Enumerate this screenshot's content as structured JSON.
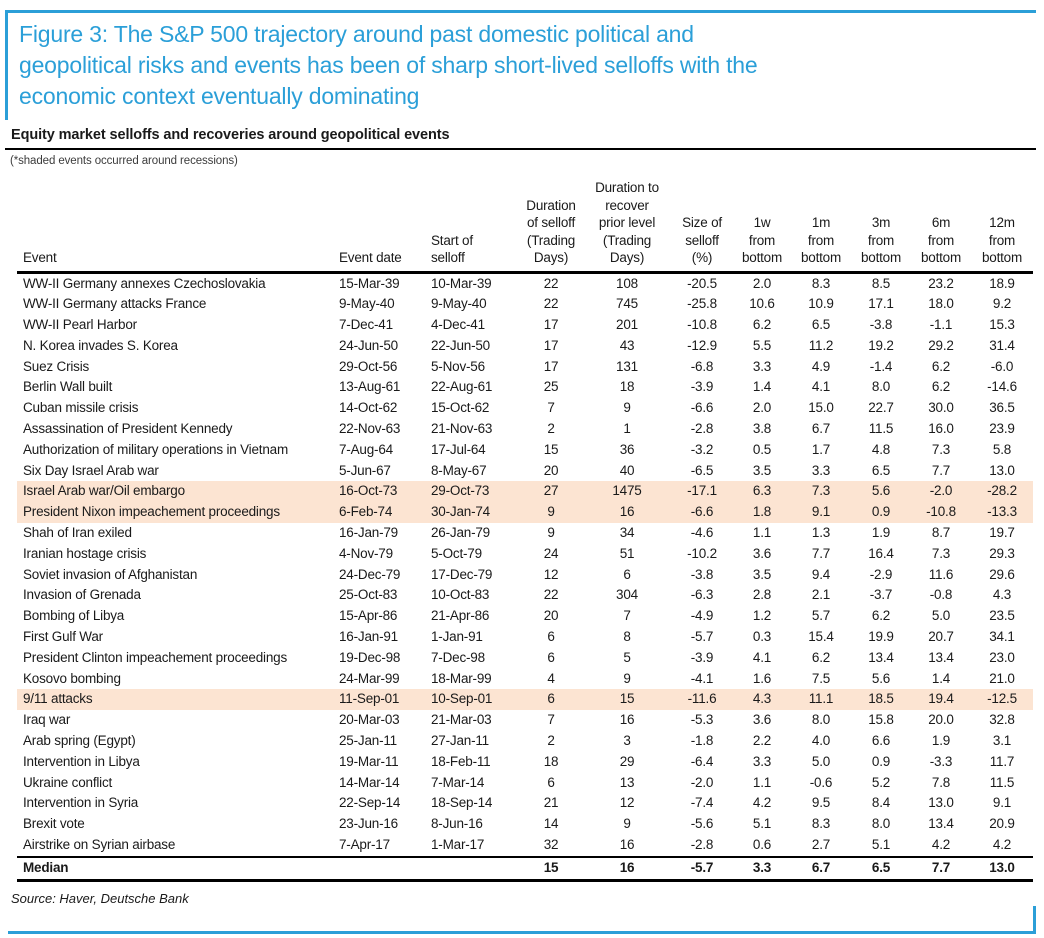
{
  "figure": {
    "title": "Figure 3: The S&P 500 trajectory around past domestic political and\ngeopolitical risks and events has been of sharp short-lived selloffs with the\neconomic context eventually dominating",
    "subtitle": "Equity market selloffs and recoveries around geopolitical events",
    "note": "(*shaded events occurred around recessions)",
    "source": "Source: Haver, Deutsche Bank"
  },
  "colors": {
    "accent_blue": "#2b9fd8",
    "recession_shade": "#fce4d2",
    "rule_black": "#000000"
  },
  "table": {
    "columns": [
      "Event",
      "Event date",
      "Start of\nselloff",
      "Duration\nof selloff\n(Trading\nDays)",
      "Duration to\nrecover\nprior level\n(Trading\nDays)",
      "Size of\nselloff\n(%)",
      "1w\nfrom\nbottom",
      "1m\nfrom\nbottom",
      "3m\nfrom\nbottom",
      "6m\nfrom\nbottom",
      "12m\nfrom\nbottom"
    ],
    "recession_shaded_row_indexes": [
      10,
      11,
      20
    ],
    "rows": [
      [
        "WW-II Germany annexes Czechoslovakia",
        "15-Mar-39",
        "10-Mar-39",
        "22",
        "108",
        "-20.5",
        "2.0",
        "8.3",
        "8.5",
        "23.2",
        "18.9"
      ],
      [
        "WW-II Germany attacks France",
        "9-May-40",
        "9-May-40",
        "22",
        "745",
        "-25.8",
        "10.6",
        "10.9",
        "17.1",
        "18.0",
        "9.2"
      ],
      [
        "WW-II Pearl Harbor",
        "7-Dec-41",
        "4-Dec-41",
        "17",
        "201",
        "-10.8",
        "6.2",
        "6.5",
        "-3.8",
        "-1.1",
        "15.3"
      ],
      [
        "N. Korea invades S. Korea",
        "24-Jun-50",
        "22-Jun-50",
        "17",
        "43",
        "-12.9",
        "5.5",
        "11.2",
        "19.2",
        "29.2",
        "31.4"
      ],
      [
        "Suez Crisis",
        "29-Oct-56",
        "5-Nov-56",
        "17",
        "131",
        "-6.8",
        "3.3",
        "4.9",
        "-1.4",
        "6.2",
        "-6.0"
      ],
      [
        "Berlin Wall built",
        "13-Aug-61",
        "22-Aug-61",
        "25",
        "18",
        "-3.9",
        "1.4",
        "4.1",
        "8.0",
        "6.2",
        "-14.6"
      ],
      [
        "Cuban missile crisis",
        "14-Oct-62",
        "15-Oct-62",
        "7",
        "9",
        "-6.6",
        "2.0",
        "15.0",
        "22.7",
        "30.0",
        "36.5"
      ],
      [
        "Assassination of President Kennedy",
        "22-Nov-63",
        "21-Nov-63",
        "2",
        "1",
        "-2.8",
        "3.8",
        "6.7",
        "11.5",
        "16.0",
        "23.9"
      ],
      [
        "Authorization of military operations in Vietnam",
        "7-Aug-64",
        "17-Jul-64",
        "15",
        "36",
        "-3.2",
        "0.5",
        "1.7",
        "4.8",
        "7.3",
        "5.8"
      ],
      [
        "Six Day Israel Arab war",
        "5-Jun-67",
        "8-May-67",
        "20",
        "40",
        "-6.5",
        "3.5",
        "3.3",
        "6.5",
        "7.7",
        "13.0"
      ],
      [
        "Israel Arab war/Oil embargo",
        "16-Oct-73",
        "29-Oct-73",
        "27",
        "1475",
        "-17.1",
        "6.3",
        "7.3",
        "5.6",
        "-2.0",
        "-28.2"
      ],
      [
        "President Nixon impeachement proceedings",
        "6-Feb-74",
        "30-Jan-74",
        "9",
        "16",
        "-6.6",
        "1.8",
        "9.1",
        "0.9",
        "-10.8",
        "-13.3"
      ],
      [
        "Shah of Iran exiled",
        "16-Jan-79",
        "26-Jan-79",
        "9",
        "34",
        "-4.6",
        "1.1",
        "1.3",
        "1.9",
        "8.7",
        "19.7"
      ],
      [
        "Iranian hostage crisis",
        "4-Nov-79",
        "5-Oct-79",
        "24",
        "51",
        "-10.2",
        "3.6",
        "7.7",
        "16.4",
        "7.3",
        "29.3"
      ],
      [
        "Soviet invasion of Afghanistan",
        "24-Dec-79",
        "17-Dec-79",
        "12",
        "6",
        "-3.8",
        "3.5",
        "9.4",
        "-2.9",
        "11.6",
        "29.6"
      ],
      [
        "Invasion of Grenada",
        "25-Oct-83",
        "10-Oct-83",
        "22",
        "304",
        "-6.3",
        "2.8",
        "2.1",
        "-3.7",
        "-0.8",
        "4.3"
      ],
      [
        "Bombing of Libya",
        "15-Apr-86",
        "21-Apr-86",
        "20",
        "7",
        "-4.9",
        "1.2",
        "5.7",
        "6.2",
        "5.0",
        "23.5"
      ],
      [
        "First Gulf War",
        "16-Jan-91",
        "1-Jan-91",
        "6",
        "8",
        "-5.7",
        "0.3",
        "15.4",
        "19.9",
        "20.7",
        "34.1"
      ],
      [
        "President Clinton impeachement proceedings",
        "19-Dec-98",
        "7-Dec-98",
        "6",
        "5",
        "-3.9",
        "4.1",
        "6.2",
        "13.4",
        "13.4",
        "23.0"
      ],
      [
        "Kosovo bombing",
        "24-Mar-99",
        "18-Mar-99",
        "4",
        "9",
        "-4.1",
        "1.6",
        "7.5",
        "5.6",
        "1.4",
        "21.0"
      ],
      [
        "9/11 attacks",
        "11-Sep-01",
        "10-Sep-01",
        "6",
        "15",
        "-11.6",
        "4.3",
        "11.1",
        "18.5",
        "19.4",
        "-12.5"
      ],
      [
        "Iraq war",
        "20-Mar-03",
        "21-Mar-03",
        "7",
        "16",
        "-5.3",
        "3.6",
        "8.0",
        "15.8",
        "20.0",
        "32.8"
      ],
      [
        "Arab spring (Egypt)",
        "25-Jan-11",
        "27-Jan-11",
        "2",
        "3",
        "-1.8",
        "2.2",
        "4.0",
        "6.6",
        "1.9",
        "3.1"
      ],
      [
        "Intervention in Libya",
        "19-Mar-11",
        "18-Feb-11",
        "18",
        "29",
        "-6.4",
        "3.3",
        "5.0",
        "0.9",
        "-3.3",
        "11.7"
      ],
      [
        "Ukraine conflict",
        "14-Mar-14",
        "7-Mar-14",
        "6",
        "13",
        "-2.0",
        "1.1",
        "-0.6",
        "5.2",
        "7.8",
        "11.5"
      ],
      [
        "Intervention in Syria",
        "22-Sep-14",
        "18-Sep-14",
        "21",
        "12",
        "-7.4",
        "4.2",
        "9.5",
        "8.4",
        "13.0",
        "9.1"
      ],
      [
        "Brexit vote",
        "23-Jun-16",
        "8-Jun-16",
        "14",
        "9",
        "-5.6",
        "5.1",
        "8.3",
        "8.0",
        "13.4",
        "20.9"
      ],
      [
        "Airstrike on Syrian airbase",
        "7-Apr-17",
        "1-Mar-17",
        "32",
        "16",
        "-2.8",
        "0.6",
        "2.7",
        "5.1",
        "4.2",
        "4.2"
      ]
    ],
    "median_row": [
      "Median",
      "",
      "",
      "15",
      "16",
      "-5.7",
      "3.3",
      "6.7",
      "6.5",
      "7.7",
      "13.0"
    ]
  }
}
